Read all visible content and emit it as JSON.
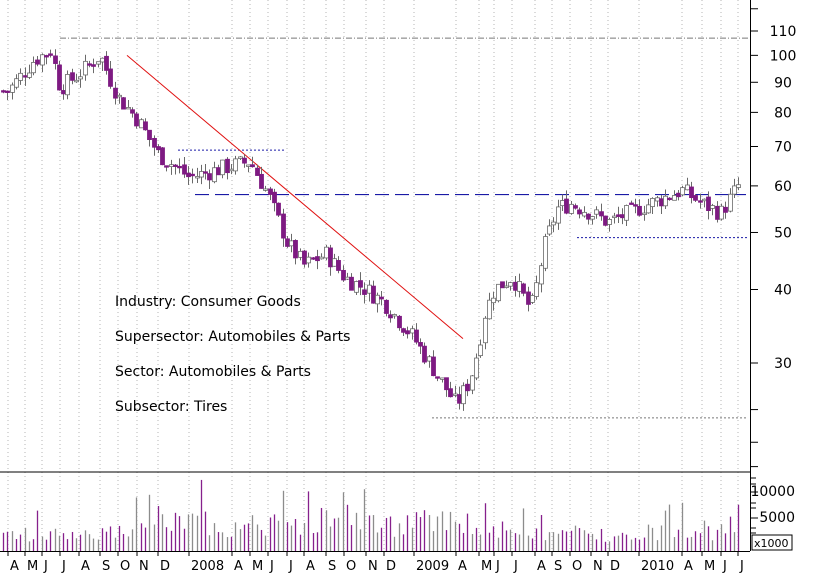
{
  "chart_data": {
    "type": "candlestick",
    "price_axis": {
      "scale": "log",
      "ticks": [
        30,
        40,
        50,
        60,
        70,
        80,
        90,
        100,
        110
      ],
      "tick_labels": [
        "30",
        "40",
        "50",
        "60",
        "70",
        "80",
        "90",
        "100",
        "110"
      ],
      "range": [
        20,
        125
      ]
    },
    "volume_axis": {
      "ticks": [
        5000,
        10000
      ],
      "tick_labels": [
        "5000",
        "10000"
      ],
      "unit_label": "x1000",
      "range": [
        0,
        13000
      ]
    },
    "time_axis": {
      "labels": [
        "A",
        "M",
        "J",
        "J",
        "A",
        "S",
        "O",
        "N",
        "D",
        "2008",
        "A",
        "M",
        "J",
        "J",
        "A",
        "S",
        "O",
        "N",
        "D",
        "2009",
        "A",
        "M",
        "J",
        "J",
        "A",
        "S",
        "O",
        "N",
        "D",
        "2010",
        "A",
        "M",
        "J",
        "J"
      ],
      "grid": "vertical dotted at each month"
    },
    "annotations": [
      "Industry: Consumer Goods",
      "Supersector: Automobiles & Parts",
      "Sector: Automobiles & Parts",
      "Subsector: Tires"
    ],
    "reference_levels": {
      "top_dotted": 107,
      "dotted_2008_range": 69,
      "dashed_support": 58,
      "dotted_2010_base": 49,
      "dotted_2009_low": 24.2
    },
    "downtrend_line": {
      "from": 100,
      "to": 33
    },
    "close_anchors": [
      [
        0,
        87
      ],
      [
        1.5,
        98
      ],
      [
        2.5,
        102
      ],
      [
        3,
        88
      ],
      [
        4,
        93
      ],
      [
        5,
        100
      ],
      [
        6,
        85
      ],
      [
        7,
        78
      ],
      [
        8,
        68
      ],
      [
        9,
        62
      ],
      [
        10,
        65
      ],
      [
        11,
        66
      ],
      [
        12,
        58
      ],
      [
        13,
        48
      ],
      [
        14,
        44
      ],
      [
        15,
        46
      ],
      [
        16,
        42
      ],
      [
        17,
        40
      ],
      [
        18,
        38
      ],
      [
        19,
        33
      ],
      [
        20,
        25.5
      ],
      [
        20.6,
        28
      ],
      [
        21.3,
        36
      ],
      [
        22,
        40
      ],
      [
        23,
        42
      ],
      [
        23.8,
        37
      ],
      [
        24.5,
        47
      ],
      [
        25.3,
        55
      ],
      [
        26,
        56
      ],
      [
        27,
        54
      ],
      [
        28,
        52
      ],
      [
        29,
        55
      ],
      [
        30,
        59
      ],
      [
        31,
        56
      ],
      [
        32,
        54
      ],
      [
        33,
        60
      ],
      [
        33.6,
        58
      ]
    ],
    "volume_level": [
      2600,
      2800,
      3000,
      2600,
      2900,
      3200,
      3100,
      3600,
      4500,
      4800,
      4200,
      4300,
      4600,
      4000,
      4400,
      5200,
      5700,
      4800,
      4300,
      4600,
      4700,
      3900,
      3500,
      2900,
      3000,
      2800,
      2900,
      2700,
      2800,
      3200,
      3300,
      3500,
      3200,
      3400
    ]
  }
}
